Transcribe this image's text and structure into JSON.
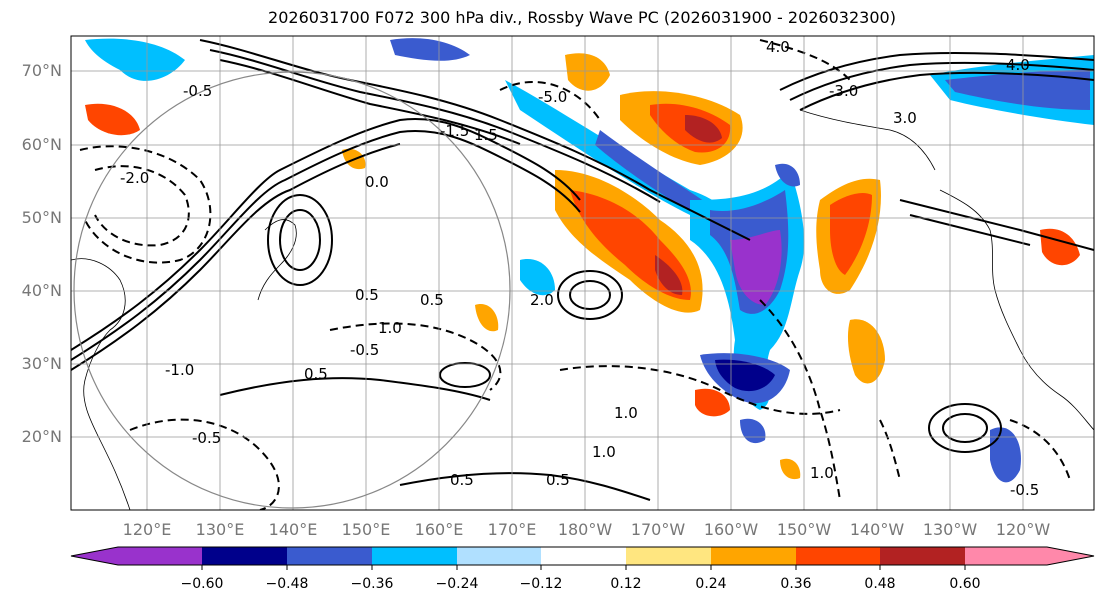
{
  "title": "2026031700 F072 300 hPa div., Rossby Wave PC (2026031900 - 2026032300)",
  "latitude_labels": [
    "70°N",
    "60°N",
    "50°N",
    "40°N",
    "30°N",
    "20°N"
  ],
  "longitude_labels": [
    "120°E",
    "130°E",
    "140°E",
    "150°E",
    "160°E",
    "170°E",
    "180°W",
    "170°W",
    "160°W",
    "150°W",
    "140°W",
    "130°W",
    "120°W"
  ],
  "contour_labels": [
    "-0.5",
    "0.5",
    "-1.0",
    "1.0",
    "-1.5",
    "1.5",
    "-2.0",
    "2.0",
    "-3.0",
    "3.0",
    "4.0",
    "-5.0",
    "0.0"
  ],
  "colorbar": {
    "ticks": [
      "−0.60",
      "−0.48",
      "−0.36",
      "−0.24",
      "−0.12",
      "0.12",
      "0.24",
      "0.36",
      "0.48",
      "0.60"
    ],
    "colors": [
      "#9932CC",
      "#00008B",
      "#3A5BCF",
      "#00BFFF",
      "#B0E0FF",
      "#FFFFFF",
      "#FFE680",
      "#FFA500",
      "#FF4500",
      "#B22222",
      "#FF88AA"
    ]
  }
}
